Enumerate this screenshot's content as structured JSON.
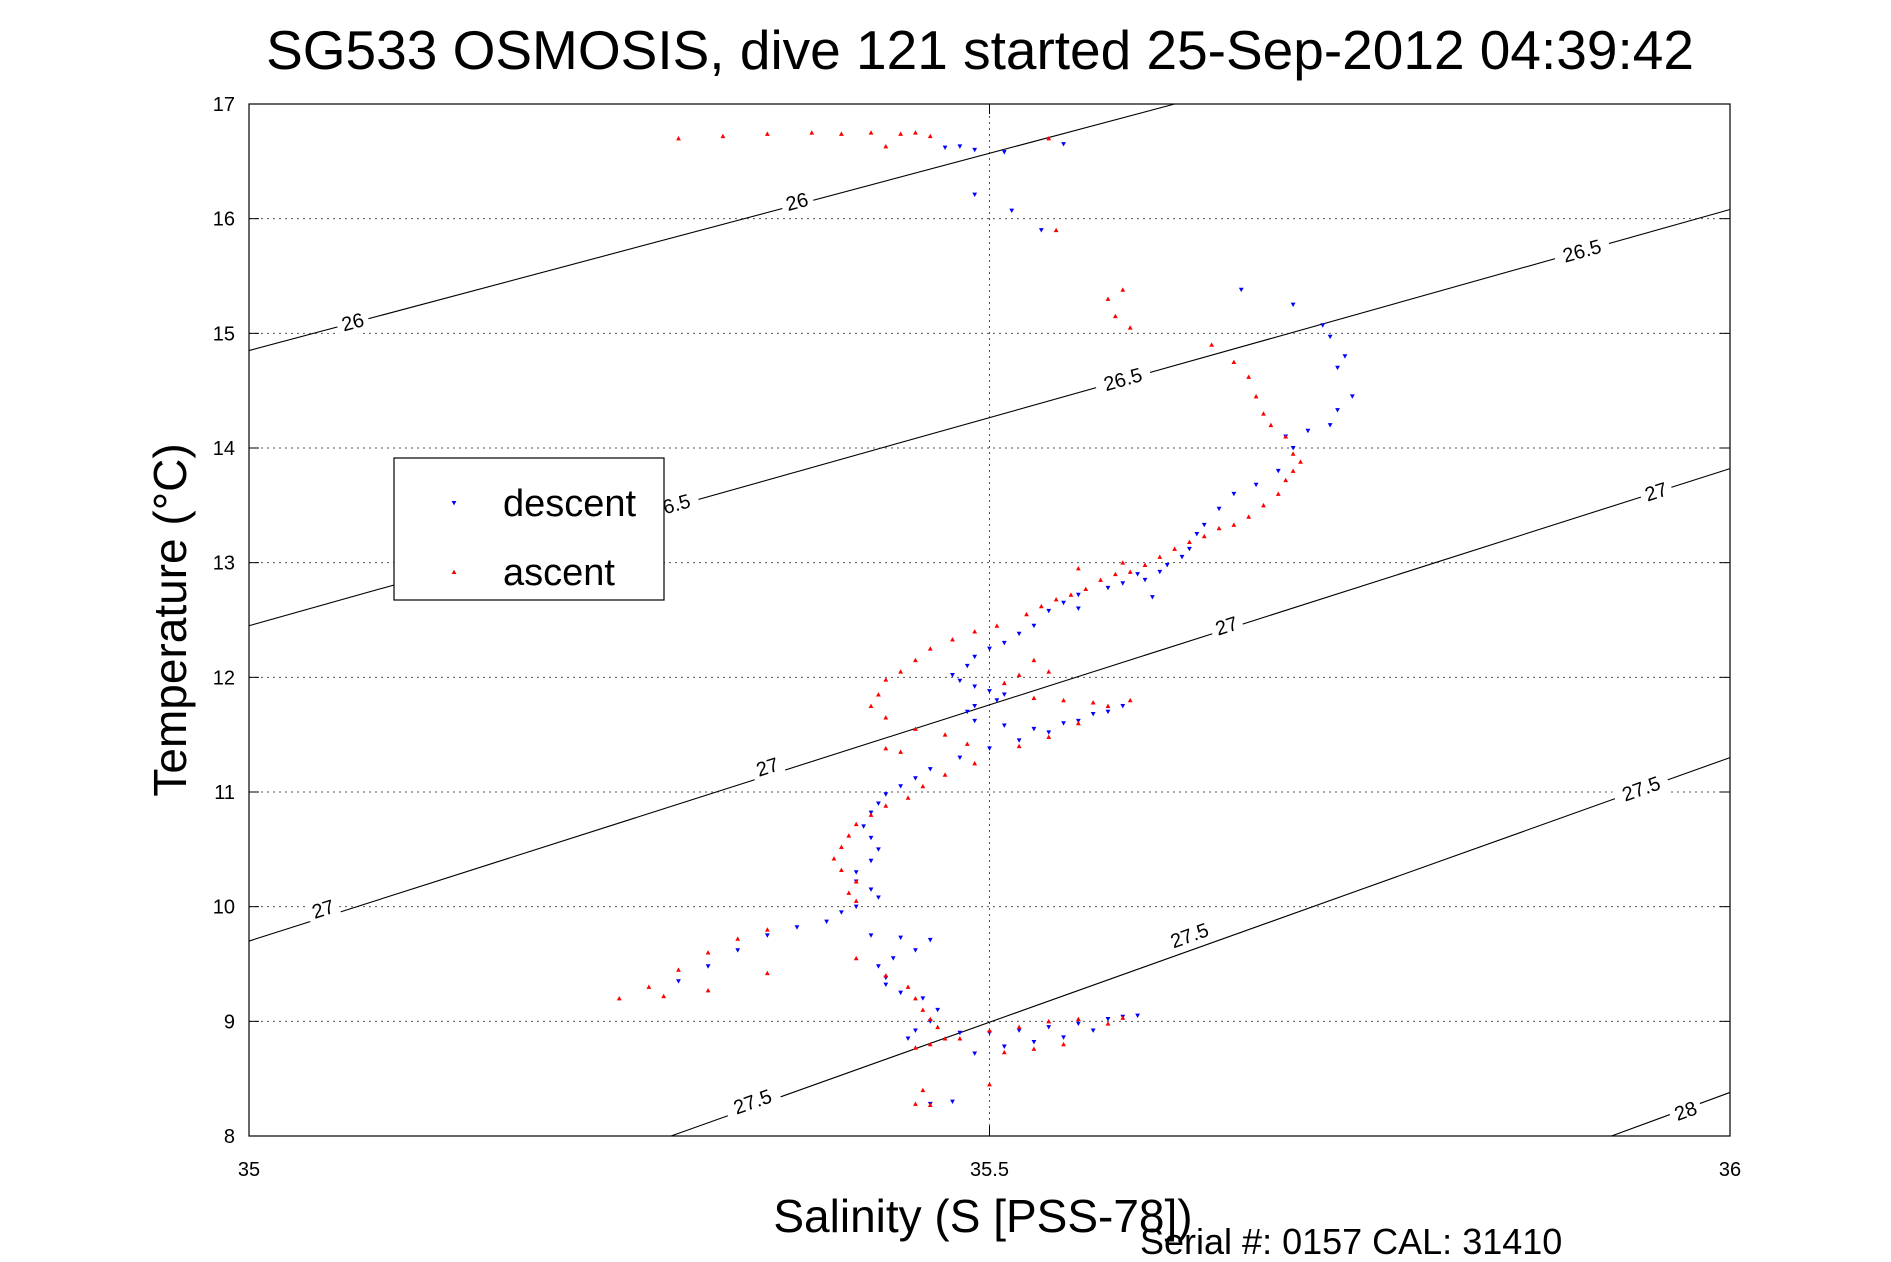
{
  "chart_data": {
    "type": "scatter",
    "title": "SG533 OSMOSIS, dive 121 started 25-Sep-2012 04:39:42",
    "xlabel": "Salinity (S [PSS-78])",
    "ylabel": "Temperature (°C)",
    "xlim": [
      35,
      36
    ],
    "ylim": [
      8,
      17
    ],
    "x_ticks": [
      "35",
      "35.5",
      "36"
    ],
    "y_ticks": [
      "8",
      "9",
      "10",
      "11",
      "12",
      "13",
      "14",
      "15",
      "16",
      "17"
    ],
    "grid": true,
    "legend_position": "left",
    "series": [
      {
        "name": "descent",
        "color": "#0000ff",
        "marker": "triangle-down",
        "points": [
          [
            35.47,
            16.62
          ],
          [
            35.49,
            16.6
          ],
          [
            35.51,
            16.58
          ],
          [
            35.48,
            16.63
          ],
          [
            35.55,
            16.65
          ],
          [
            35.49,
            16.21
          ],
          [
            35.515,
            16.07
          ],
          [
            35.535,
            15.9
          ],
          [
            35.67,
            15.38
          ],
          [
            35.705,
            15.25
          ],
          [
            35.725,
            15.07
          ],
          [
            35.73,
            14.97
          ],
          [
            35.74,
            14.8
          ],
          [
            35.735,
            14.7
          ],
          [
            35.745,
            14.45
          ],
          [
            35.735,
            14.33
          ],
          [
            35.73,
            14.2
          ],
          [
            35.715,
            14.15
          ],
          [
            35.7,
            14.1
          ],
          [
            35.705,
            14.0
          ],
          [
            35.695,
            13.8
          ],
          [
            35.68,
            13.68
          ],
          [
            35.665,
            13.6
          ],
          [
            35.655,
            13.47
          ],
          [
            35.645,
            13.33
          ],
          [
            35.64,
            13.25
          ],
          [
            35.635,
            13.12
          ],
          [
            35.63,
            13.05
          ],
          [
            35.62,
            12.98
          ],
          [
            35.615,
            12.92
          ],
          [
            35.605,
            12.85
          ],
          [
            35.59,
            12.82
          ],
          [
            35.58,
            12.78
          ],
          [
            35.56,
            12.72
          ],
          [
            35.55,
            12.65
          ],
          [
            35.56,
            12.6
          ],
          [
            35.54,
            12.58
          ],
          [
            35.61,
            12.7
          ],
          [
            35.6,
            12.9
          ],
          [
            35.53,
            12.45
          ],
          [
            35.52,
            12.38
          ],
          [
            35.51,
            12.3
          ],
          [
            35.5,
            12.25
          ],
          [
            35.49,
            12.18
          ],
          [
            35.485,
            12.1
          ],
          [
            35.475,
            12.02
          ],
          [
            35.48,
            11.97
          ],
          [
            35.49,
            11.92
          ],
          [
            35.5,
            11.88
          ],
          [
            35.51,
            11.85
          ],
          [
            35.505,
            11.8
          ],
          [
            35.49,
            11.75
          ],
          [
            35.485,
            11.7
          ],
          [
            35.49,
            11.62
          ],
          [
            35.51,
            11.58
          ],
          [
            35.53,
            11.55
          ],
          [
            35.55,
            11.6
          ],
          [
            35.57,
            11.68
          ],
          [
            35.59,
            11.75
          ],
          [
            35.58,
            11.7
          ],
          [
            35.56,
            11.62
          ],
          [
            35.54,
            11.52
          ],
          [
            35.52,
            11.45
          ],
          [
            35.5,
            11.38
          ],
          [
            35.48,
            11.3
          ],
          [
            35.46,
            11.2
          ],
          [
            35.45,
            11.12
          ],
          [
            35.44,
            11.05
          ],
          [
            35.43,
            10.98
          ],
          [
            35.425,
            10.9
          ],
          [
            35.42,
            10.82
          ],
          [
            35.415,
            10.7
          ],
          [
            35.42,
            10.6
          ],
          [
            35.425,
            10.5
          ],
          [
            35.42,
            10.4
          ],
          [
            35.41,
            10.3
          ],
          [
            35.41,
            10.22
          ],
          [
            35.42,
            10.15
          ],
          [
            35.425,
            10.08
          ],
          [
            35.41,
            10.0
          ],
          [
            35.4,
            9.95
          ],
          [
            35.39,
            9.87
          ],
          [
            35.37,
            9.82
          ],
          [
            35.35,
            9.75
          ],
          [
            35.33,
            9.62
          ],
          [
            35.31,
            9.48
          ],
          [
            35.29,
            9.35
          ],
          [
            35.42,
            9.75
          ],
          [
            35.44,
            9.73
          ],
          [
            35.46,
            9.71
          ],
          [
            35.45,
            9.62
          ],
          [
            35.435,
            9.55
          ],
          [
            35.425,
            9.48
          ],
          [
            35.43,
            9.38
          ],
          [
            35.43,
            9.32
          ],
          [
            35.44,
            9.25
          ],
          [
            35.455,
            9.2
          ],
          [
            35.465,
            9.1
          ],
          [
            35.46,
            9.0
          ],
          [
            35.45,
            8.92
          ],
          [
            35.445,
            8.85
          ],
          [
            35.48,
            8.9
          ],
          [
            35.5,
            8.9
          ],
          [
            35.52,
            8.92
          ],
          [
            35.54,
            8.95
          ],
          [
            35.56,
            8.98
          ],
          [
            35.58,
            9.02
          ],
          [
            35.59,
            9.04
          ],
          [
            35.6,
            9.05
          ],
          [
            35.57,
            8.92
          ],
          [
            35.55,
            8.86
          ],
          [
            35.53,
            8.82
          ],
          [
            35.51,
            8.78
          ],
          [
            35.49,
            8.72
          ],
          [
            35.46,
            8.28
          ],
          [
            35.475,
            8.3
          ]
        ]
      },
      {
        "name": "ascent",
        "color": "#ff0000",
        "marker": "triangle-up",
        "points": [
          [
            35.29,
            16.7
          ],
          [
            35.32,
            16.72
          ],
          [
            35.35,
            16.74
          ],
          [
            35.38,
            16.75
          ],
          [
            35.4,
            16.74
          ],
          [
            35.42,
            16.75
          ],
          [
            35.44,
            16.74
          ],
          [
            35.45,
            16.75
          ],
          [
            35.43,
            16.63
          ],
          [
            35.46,
            16.72
          ],
          [
            35.54,
            16.7
          ],
          [
            35.545,
            15.9
          ],
          [
            35.58,
            15.3
          ],
          [
            35.585,
            15.15
          ],
          [
            35.59,
            15.38
          ],
          [
            35.595,
            15.05
          ],
          [
            35.65,
            14.9
          ],
          [
            35.665,
            14.75
          ],
          [
            35.675,
            14.62
          ],
          [
            35.68,
            14.45
          ],
          [
            35.685,
            14.3
          ],
          [
            35.69,
            14.2
          ],
          [
            35.7,
            14.1
          ],
          [
            35.705,
            13.95
          ],
          [
            35.71,
            13.88
          ],
          [
            35.705,
            13.8
          ],
          [
            35.7,
            13.72
          ],
          [
            35.695,
            13.6
          ],
          [
            35.685,
            13.5
          ],
          [
            35.675,
            13.4
          ],
          [
            35.665,
            13.33
          ],
          [
            35.655,
            13.3
          ],
          [
            35.645,
            13.23
          ],
          [
            35.635,
            13.18
          ],
          [
            35.625,
            13.12
          ],
          [
            35.615,
            13.05
          ],
          [
            35.605,
            12.98
          ],
          [
            35.595,
            12.92
          ],
          [
            35.585,
            12.9
          ],
          [
            35.575,
            12.85
          ],
          [
            35.565,
            12.77
          ],
          [
            35.555,
            12.72
          ],
          [
            35.545,
            12.68
          ],
          [
            35.535,
            12.62
          ],
          [
            35.525,
            12.55
          ],
          [
            35.56,
            12.95
          ],
          [
            35.59,
            13.0
          ],
          [
            35.505,
            12.45
          ],
          [
            35.49,
            12.4
          ],
          [
            35.475,
            12.33
          ],
          [
            35.46,
            12.25
          ],
          [
            35.45,
            12.15
          ],
          [
            35.44,
            12.05
          ],
          [
            35.43,
            11.98
          ],
          [
            35.425,
            11.85
          ],
          [
            35.42,
            11.75
          ],
          [
            35.43,
            11.65
          ],
          [
            35.45,
            11.55
          ],
          [
            35.47,
            11.5
          ],
          [
            35.485,
            11.42
          ],
          [
            35.44,
            11.35
          ],
          [
            35.43,
            11.38
          ],
          [
            35.52,
            11.4
          ],
          [
            35.54,
            11.48
          ],
          [
            35.56,
            11.6
          ],
          [
            35.58,
            11.75
          ],
          [
            35.595,
            11.8
          ],
          [
            35.57,
            11.78
          ],
          [
            35.55,
            11.8
          ],
          [
            35.53,
            11.82
          ],
          [
            35.51,
            11.95
          ],
          [
            35.52,
            12.02
          ],
          [
            35.54,
            12.05
          ],
          [
            35.53,
            12.15
          ],
          [
            35.49,
            11.25
          ],
          [
            35.47,
            11.15
          ],
          [
            35.455,
            11.05
          ],
          [
            35.445,
            10.95
          ],
          [
            35.43,
            10.88
          ],
          [
            35.42,
            10.8
          ],
          [
            35.41,
            10.72
          ],
          [
            35.405,
            10.62
          ],
          [
            35.4,
            10.52
          ],
          [
            35.395,
            10.42
          ],
          [
            35.4,
            10.32
          ],
          [
            35.41,
            10.22
          ],
          [
            35.405,
            10.12
          ],
          [
            35.41,
            10.05
          ],
          [
            35.35,
            9.8
          ],
          [
            35.33,
            9.72
          ],
          [
            35.31,
            9.6
          ],
          [
            35.29,
            9.45
          ],
          [
            35.27,
            9.3
          ],
          [
            35.25,
            9.2
          ],
          [
            35.28,
            9.22
          ],
          [
            35.31,
            9.27
          ],
          [
            35.35,
            9.42
          ],
          [
            35.41,
            9.55
          ],
          [
            35.43,
            9.4
          ],
          [
            35.445,
            9.3
          ],
          [
            35.45,
            9.2
          ],
          [
            35.455,
            9.1
          ],
          [
            35.46,
            9.02
          ],
          [
            35.465,
            8.95
          ],
          [
            35.47,
            8.85
          ],
          [
            35.46,
            8.8
          ],
          [
            35.45,
            8.77
          ],
          [
            35.48,
            8.85
          ],
          [
            35.5,
            8.92
          ],
          [
            35.52,
            8.95
          ],
          [
            35.54,
            9.0
          ],
          [
            35.56,
            9.02
          ],
          [
            35.58,
            8.98
          ],
          [
            35.59,
            9.03
          ],
          [
            35.55,
            8.8
          ],
          [
            35.53,
            8.76
          ],
          [
            35.51,
            8.73
          ],
          [
            35.5,
            8.45
          ],
          [
            35.46,
            8.27
          ],
          [
            35.45,
            8.28
          ],
          [
            35.455,
            8.4
          ]
        ]
      }
    ],
    "isopycnals": [
      {
        "sigma": 26.0,
        "line": [
          [
            35.0,
            14.85
          ],
          [
            35.625,
            17.0
          ]
        ],
        "labels": [
          {
            "text": "26",
            "s": 35.37,
            "t": 16.15
          },
          {
            "text": "26",
            "s": 35.07,
            "t": 15.1
          }
        ]
      },
      {
        "sigma": 26.5,
        "line": [
          [
            35.0,
            12.45
          ],
          [
            36.0,
            16.08
          ]
        ],
        "labels": [
          {
            "text": "26.5",
            "s": 35.9,
            "t": 15.72
          },
          {
            "text": "26.5",
            "s": 35.59,
            "t": 14.6
          },
          {
            "text": "26.5",
            "s": 35.285,
            "t": 13.5
          }
        ]
      },
      {
        "sigma": 27.0,
        "line": [
          [
            35.0,
            9.7
          ],
          [
            36.0,
            13.82
          ]
        ],
        "labels": [
          {
            "text": "27",
            "s": 35.95,
            "t": 13.62
          },
          {
            "text": "27",
            "s": 35.66,
            "t": 12.45
          },
          {
            "text": "27",
            "s": 35.35,
            "t": 11.22
          },
          {
            "text": "27",
            "s": 35.05,
            "t": 9.98
          }
        ]
      },
      {
        "sigma": 27.5,
        "line": [
          [
            35.285,
            8.0
          ],
          [
            36.0,
            11.3
          ]
        ],
        "labels": [
          {
            "text": "27.5",
            "s": 35.94,
            "t": 11.03
          },
          {
            "text": "27.5",
            "s": 35.635,
            "t": 9.75
          },
          {
            "text": "27.5",
            "s": 35.34,
            "t": 8.3
          }
        ]
      },
      {
        "sigma": 28.0,
        "line": [
          [
            35.92,
            8.0
          ],
          [
            36.0,
            8.38
          ]
        ],
        "labels": [
          {
            "text": "28",
            "s": 35.97,
            "t": 8.22
          }
        ]
      }
    ]
  },
  "footer_text": "Serial #: 0157  CAL: 31410"
}
